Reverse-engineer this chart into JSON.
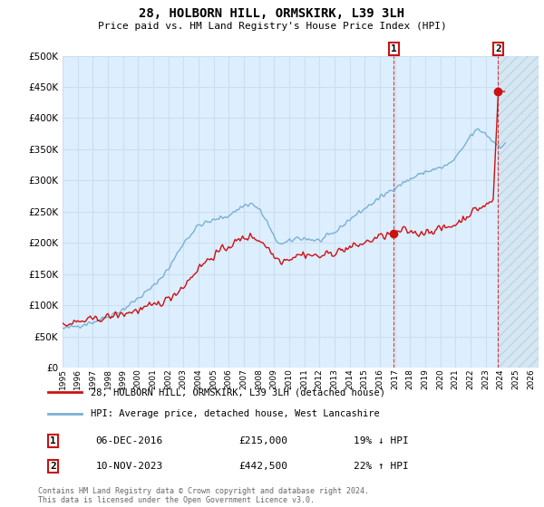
{
  "title": "28, HOLBORN HILL, ORMSKIRK, L39 3LH",
  "subtitle": "Price paid vs. HM Land Registry's House Price Index (HPI)",
  "hpi_label": "HPI: Average price, detached house, West Lancashire",
  "property_label": "28, HOLBORN HILL, ORMSKIRK, L39 3LH (detached house)",
  "hpi_color": "#7ab0d4",
  "property_color": "#cc1111",
  "marker1_date": "06-DEC-2016",
  "marker1_price": 215000,
  "marker1_pct": "19% ↓ HPI",
  "marker2_date": "10-NOV-2023",
  "marker2_price": 442500,
  "marker2_pct": "22% ↑ HPI",
  "ylim": [
    0,
    500000
  ],
  "yticks": [
    0,
    50000,
    100000,
    150000,
    200000,
    250000,
    300000,
    350000,
    400000,
    450000,
    500000
  ],
  "xlim_min": 1995.0,
  "xlim_max": 2026.5,
  "background_color": "#ddeeff",
  "grid_color": "#ccddee",
  "footer": "Contains HM Land Registry data © Crown copyright and database right 2024.\nThis data is licensed under the Open Government Licence v3.0.",
  "marker1_x": 2016.92,
  "marker2_x": 2023.83
}
